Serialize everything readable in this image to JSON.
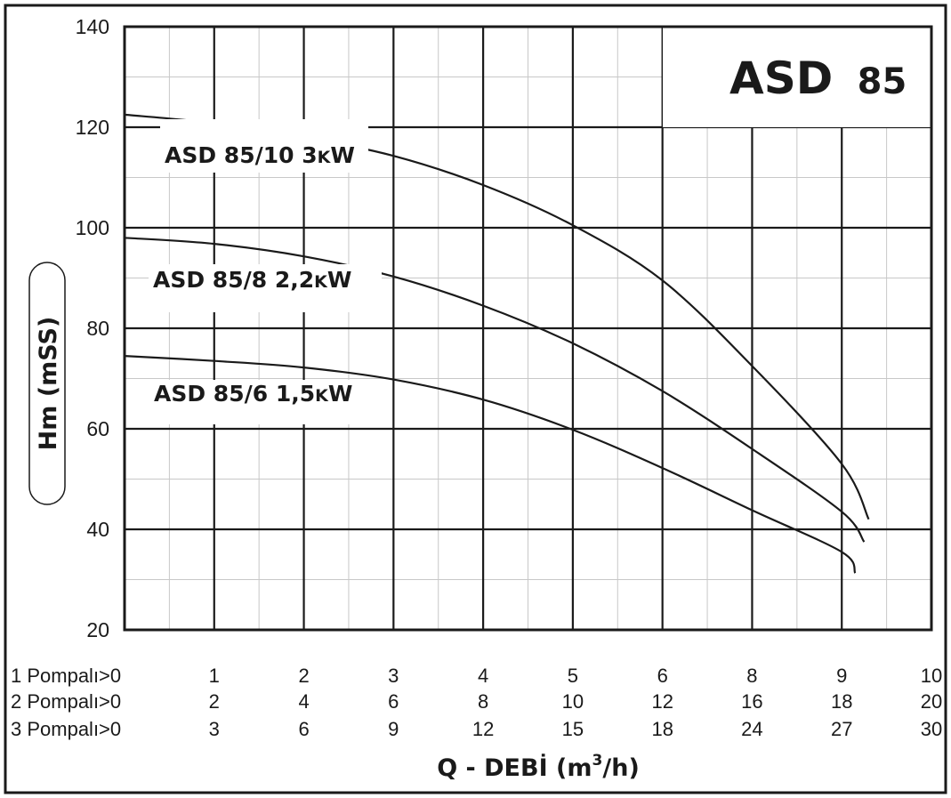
{
  "chart_data": {
    "type": "line",
    "title": "ASD 85",
    "title_parts": [
      "ASD",
      "85"
    ],
    "ylabel": "Hm (mSS)",
    "xlabel": "Q - DEBİ (m³/h)",
    "xlabel_parts": [
      "Q - DEBİ (m",
      "3",
      "/h)"
    ],
    "ylim": [
      20,
      140
    ],
    "yticks": [
      "20",
      "40",
      "60",
      "80",
      "100",
      "120",
      "140"
    ],
    "x_rows": [
      {
        "label": "1 Pompalı>0",
        "ticks": [
          "1",
          "2",
          "3",
          "4",
          "5",
          "6",
          "8",
          "9",
          "10"
        ]
      },
      {
        "label": "2 Pompalı>0",
        "ticks": [
          "2",
          "4",
          "6",
          "8",
          "10",
          "12",
          "16",
          "18",
          "20"
        ]
      },
      {
        "label": "3 Pompalı>0",
        "ticks": [
          "3",
          "6",
          "9",
          "12",
          "15",
          "18",
          "24",
          "27",
          "30"
        ]
      }
    ],
    "grid": true,
    "series": [
      {
        "name": "ASD 85/10 3KW",
        "name_parts": [
          "ASD 85/10 3",
          "K",
          "W"
        ],
        "points": [
          [
            0,
            122.5
          ],
          [
            1,
            120.8
          ],
          [
            2,
            118
          ],
          [
            3,
            114.3
          ],
          [
            4,
            108.5
          ],
          [
            5,
            100.5
          ],
          [
            6,
            89.5
          ],
          [
            7,
            72.5
          ],
          [
            8,
            53
          ],
          [
            8.3,
            42
          ]
        ]
      },
      {
        "name": "ASD 85/8 2,2KW",
        "name_parts": [
          "ASD 85/8 2,2",
          "K",
          "W"
        ],
        "points": [
          [
            0,
            98
          ],
          [
            1,
            96.8
          ],
          [
            2,
            94.3
          ],
          [
            3,
            90.3
          ],
          [
            4,
            84.5
          ],
          [
            5,
            77
          ],
          [
            6,
            67.5
          ],
          [
            7,
            56
          ],
          [
            8,
            43.5
          ],
          [
            8.25,
            37.5
          ]
        ]
      },
      {
        "name": "ASD 85/6 1,5KW",
        "name_parts": [
          "ASD 85/6 1,5",
          "K",
          "W"
        ],
        "points": [
          [
            0,
            74.5
          ],
          [
            1,
            73.5
          ],
          [
            2,
            72.2
          ],
          [
            3,
            69.8
          ],
          [
            4,
            65.8
          ],
          [
            5,
            59.8
          ],
          [
            6,
            52.2
          ],
          [
            7,
            43.8
          ],
          [
            8,
            35.5
          ],
          [
            8.15,
            31.3
          ]
        ]
      }
    ]
  }
}
